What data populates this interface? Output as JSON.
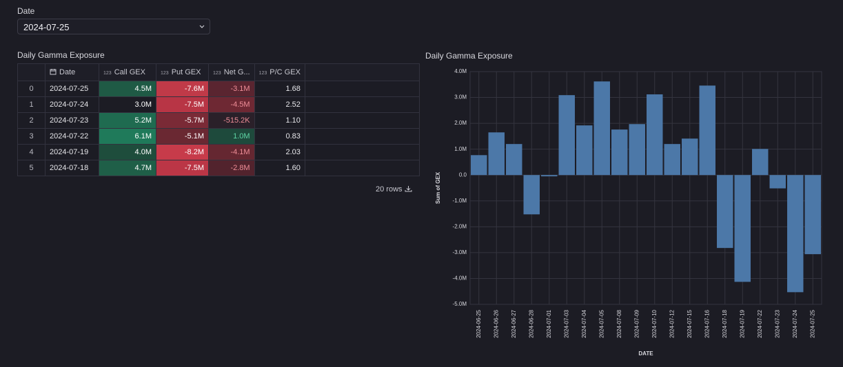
{
  "filter": {
    "label": "Date",
    "value": "2024-07-25"
  },
  "table": {
    "title": "Daily Gamma Exposure",
    "type_tag": "123",
    "columns": [
      "",
      "Date",
      "Call GEX",
      "Put GEX",
      "Net G...",
      "P/C GEX"
    ],
    "rows": [
      [
        "0",
        "2024-07-25",
        "4.5M",
        "-7.6M",
        "-3.1M",
        "1.68"
      ],
      [
        "1",
        "2024-07-24",
        "3.0M",
        "-7.5M",
        "-4.5M",
        "2.52"
      ],
      [
        "2",
        "2024-07-23",
        "5.2M",
        "-5.7M",
        "-515.2K",
        "1.10"
      ],
      [
        "3",
        "2024-07-22",
        "6.1M",
        "-5.1M",
        "1.0M",
        "0.83"
      ],
      [
        "4",
        "2024-07-19",
        "4.0M",
        "-8.2M",
        "-4.1M",
        "2.03"
      ],
      [
        "5",
        "2024-07-18",
        "4.7M",
        "-7.5M",
        "-2.8M",
        "1.60"
      ]
    ],
    "cell_bg": [
      [
        "#1f5a45",
        "#c03a48",
        "#5a2530"
      ],
      [
        "#1c1c24",
        "#b83545",
        "#6e2833"
      ],
      [
        "#1f6b50",
        "#7a2a36",
        "#2a2029"
      ],
      [
        "#1f7a5a",
        "#6a2832",
        "#1e4a3c"
      ],
      [
        "#1e4d3c",
        "#c73b4a",
        "#652731"
      ],
      [
        "#1f5f48",
        "#bb3646",
        "#52232d"
      ]
    ],
    "cell_fg": [
      [
        "#ffffff",
        "#ffffff",
        "#ee8d97"
      ],
      [
        "#ffffff",
        "#ffffff",
        "#ee8d97"
      ],
      [
        "#ffffff",
        "#ffffff",
        "#ee8d97"
      ],
      [
        "#ffffff",
        "#ffffff",
        "#5fd6a6"
      ],
      [
        "#ffffff",
        "#ffffff",
        "#ee8d97"
      ],
      [
        "#ffffff",
        "#ffffff",
        "#ee8d97"
      ]
    ],
    "footer": "20 rows"
  },
  "chart_data": {
    "type": "bar",
    "title": "Daily Gamma Exposure",
    "x_label": "DATE",
    "y_label": "Sum of GEX",
    "categories": [
      "2024-06-25",
      "2024-06-26",
      "2024-06-27",
      "2024-06-28",
      "2024-07-01",
      "2024-07-03",
      "2024-07-04",
      "2024-07-05",
      "2024-07-08",
      "2024-07-09",
      "2024-07-10",
      "2024-07-12",
      "2024-07-15",
      "2024-07-16",
      "2024-07-18",
      "2024-07-19",
      "2024-07-22",
      "2024-07-23",
      "2024-07-24",
      "2024-07-25"
    ],
    "values": [
      770000,
      1650000,
      1200000,
      -1520000,
      -50000,
      3090000,
      1920000,
      3620000,
      1760000,
      1970000,
      3120000,
      1200000,
      1410000,
      3460000,
      -2820000,
      -4130000,
      1010000,
      -515200,
      -4530000,
      -3060000
    ],
    "color": "#4c78a8",
    "ylim": [
      -5000000,
      4000000
    ],
    "yticks": [
      {
        "value": -5000000,
        "label": "-5.0M"
      },
      {
        "value": -4000000,
        "label": "-4.0M"
      },
      {
        "value": -3000000,
        "label": "-3.0M"
      },
      {
        "value": -2000000,
        "label": "-2.0M"
      },
      {
        "value": -1000000,
        "label": "-1.0M"
      },
      {
        "value": 0,
        "label": "0.0"
      },
      {
        "value": 1000000,
        "label": "1.0M"
      },
      {
        "value": 2000000,
        "label": "2.0M"
      },
      {
        "value": 3000000,
        "label": "3.0M"
      },
      {
        "value": 4000000,
        "label": "4.0M"
      }
    ],
    "grid": true
  }
}
